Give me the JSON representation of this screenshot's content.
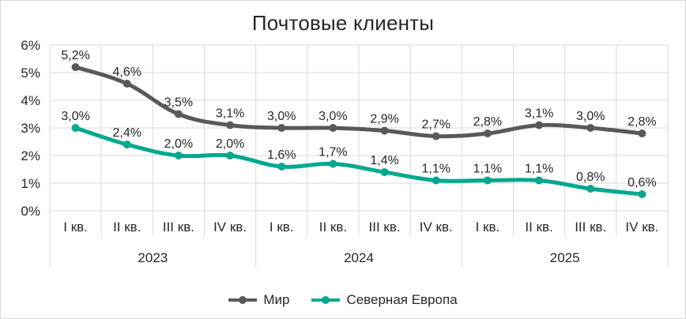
{
  "chart_data": {
    "type": "line",
    "title": "Почтовые клиенты",
    "xlabel": "",
    "ylabel": "",
    "ylim": [
      0,
      6
    ],
    "y_ticks": [
      "0%",
      "1%",
      "2%",
      "3%",
      "4%",
      "5%",
      "6%"
    ],
    "grid": true,
    "legend_position": "bottom",
    "categories": [
      "I кв.",
      "II кв.",
      "III кв.",
      "IV кв.",
      "I кв.",
      "II кв.",
      "III кв.",
      "IV кв.",
      "I кв.",
      "II кв.",
      "III кв.",
      "IV кв."
    ],
    "groups": [
      {
        "label": "2023",
        "span": 4
      },
      {
        "label": "2024",
        "span": 4
      },
      {
        "label": "2025",
        "span": 4
      }
    ],
    "series": [
      {
        "name": "Мир",
        "color": "#595959",
        "values": [
          5.2,
          4.6,
          3.5,
          3.1,
          3.0,
          3.0,
          2.9,
          2.7,
          2.8,
          3.1,
          3.0,
          2.8
        ],
        "labels": [
          "5,2%",
          "4,6%",
          "3,5%",
          "3,1%",
          "3,0%",
          "3,0%",
          "2,9%",
          "2,7%",
          "2,8%",
          "3,1%",
          "3,0%",
          "2,8%"
        ]
      },
      {
        "name": "Северная Европа",
        "color": "#00a88e",
        "values": [
          3.0,
          2.4,
          2.0,
          2.0,
          1.6,
          1.7,
          1.4,
          1.1,
          1.1,
          1.1,
          0.8,
          0.6
        ],
        "labels": [
          "3,0%",
          "2,4%",
          "2,0%",
          "2,0%",
          "1,6%",
          "1,7%",
          "1,4%",
          "1,1%",
          "1,1%",
          "1,1%",
          "0,8%",
          "0,6%"
        ]
      }
    ]
  }
}
